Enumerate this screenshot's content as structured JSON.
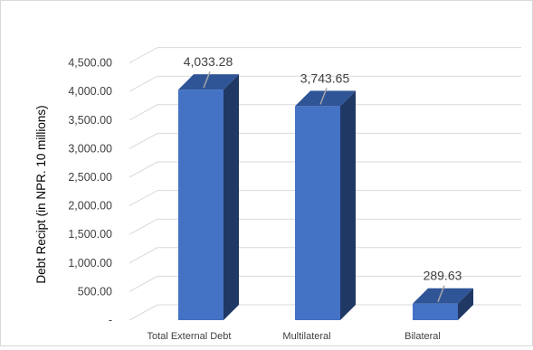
{
  "chart_data": {
    "type": "bar",
    "style": "3d-column",
    "title": "",
    "xlabel": "",
    "ylabel": "Debt Recipt (in NPR. 10 millions)",
    "categories": [
      "Total External Debt",
      "Multilateral",
      "Bilateral"
    ],
    "values": [
      4033.28,
      3743.65,
      289.63
    ],
    "data_labels": [
      "4,033.28",
      "3,743.65",
      "289.63"
    ],
    "ylim": [
      0,
      4500
    ],
    "yticks": [
      0,
      500,
      1000,
      1500,
      2000,
      2500,
      3000,
      3500,
      4000,
      4500
    ],
    "ytick_labels": [
      "-",
      "500.00",
      "1,000.00",
      "1,500.00",
      "2,000.00",
      "2,500.00",
      "3,000.00",
      "3,500.00",
      "4,000.00",
      "4,500.00"
    ],
    "grid": true,
    "legend": "none",
    "colors": {
      "bar_front": "#4472c4",
      "bar_top": "#2f5597",
      "bar_side": "#203864",
      "gridline": "#d9d9d9",
      "leader_line": "#a6a6a6"
    }
  }
}
